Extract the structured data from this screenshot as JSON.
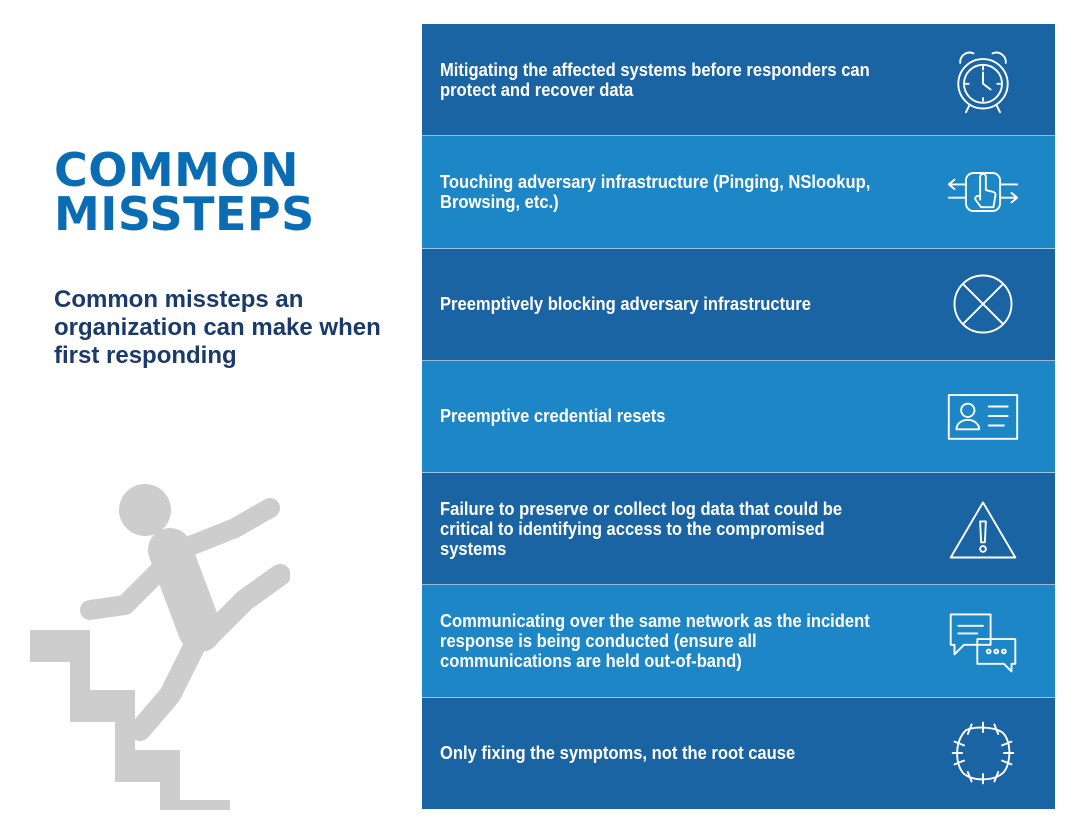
{
  "heading": {
    "line1": "COMMON",
    "line2": "MISSTEPS"
  },
  "subtitle": "Common missteps an organization can make when first responding",
  "colors": {
    "title_blue": "#0a6db3",
    "subtitle_navy": "#1b3a6b",
    "row_dark": "#1a64a4",
    "row_light": "#1d86c7",
    "figure_gray": "#cdcdcd"
  },
  "illustration": "person-falling-down-stairs",
  "missteps": [
    {
      "text": "Mitigating the affected systems before responders can protect and recover data",
      "icon": "alarm-clock-icon"
    },
    {
      "text": "Touching adversary infrastructure (Pinging, NSlookup, Browsing, etc.)",
      "icon": "touch-pointer-icon"
    },
    {
      "text": "Preemptively blocking adversary infrastructure",
      "icon": "blocked-circle-icon"
    },
    {
      "text": "Preemptive credential resets",
      "icon": "id-card-icon"
    },
    {
      "text": "Failure to preserve or collect log data that could be critical to identifying access to the compromised systems",
      "icon": "warning-triangle-icon"
    },
    {
      "text": "Communicating over the same network as the incident response is being conducted (ensure all communications are held out-of-band)",
      "icon": "chat-bubbles-icon"
    },
    {
      "text": "Only fixing the symptoms, not the root cause",
      "icon": "patched-hole-icon"
    }
  ]
}
